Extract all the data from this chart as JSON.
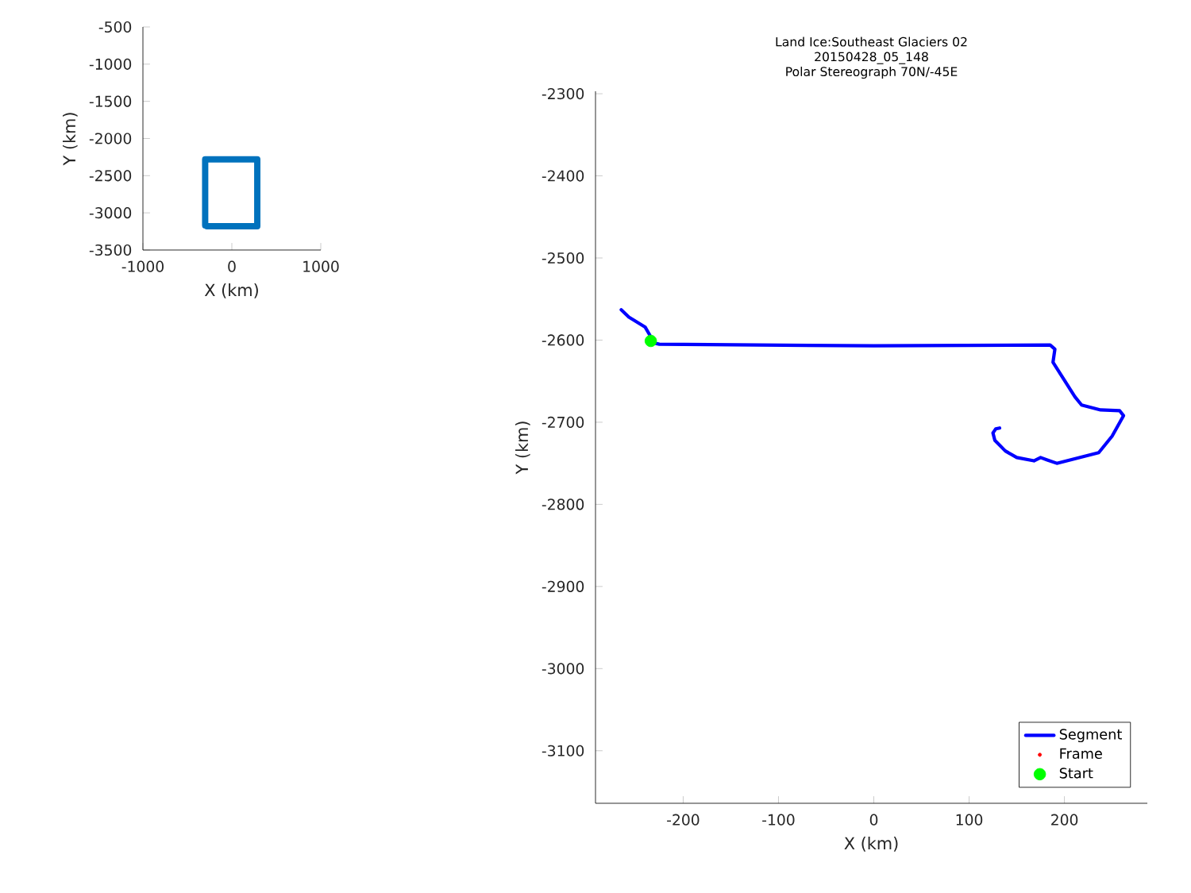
{
  "chart_data": [
    {
      "type": "line",
      "xlabel": "X (km)",
      "ylabel": "Y (km)",
      "xlim": [
        -1000,
        1000
      ],
      "ylim": [
        -3500,
        -500
      ],
      "xticks": [
        -1000,
        0,
        1000
      ],
      "yticks": [
        -3500,
        -3000,
        -2500,
        -2000,
        -1500,
        -1000,
        -500
      ],
      "series": [
        {
          "color": "#0072bd",
          "x": [
            -300,
            -300,
            286,
            286,
            -280
          ],
          "values": [
            -3170,
            -2280,
            -2280,
            -3180,
            -3180
          ]
        }
      ]
    },
    {
      "type": "line",
      "title": "Land Ice:Southeast  Glaciers 02",
      "subtitle": "20150428_05_148",
      "annotations": [
        "Polar Stereograph 70N/-45E"
      ],
      "xlabel": "X (km)",
      "ylabel": "Y (km)",
      "xlim": [
        -292,
        287
      ],
      "ylim": [
        -3164,
        -2297
      ],
      "xticks": [
        -200,
        -100,
        0,
        100,
        200
      ],
      "yticks": [
        -3100,
        -3000,
        -2900,
        -2800,
        -2700,
        -2600,
        -2500,
        -2400,
        -2300
      ],
      "legend": "bottom right",
      "series": [
        {
          "name": "Segment",
          "color": "#0000ff",
          "x": [
            -265,
            -257,
            -240,
            -235,
            -233,
            -225,
            0,
            185,
            190,
            188,
            211,
            218,
            238,
            258,
            262,
            250,
            236,
            192,
            182,
            175,
            168,
            150,
            138,
            127,
            125,
            128,
            132
          ],
          "values": [
            -2563,
            -2572,
            -2584,
            -2594,
            -2603,
            -2605,
            -2607,
            -2606,
            -2611,
            -2627,
            -2669,
            -2679,
            -2685,
            -2686,
            -2692,
            -2717,
            -2737,
            -2750,
            -2746,
            -2743,
            -2747,
            -2743,
            -2735,
            -2722,
            -2713,
            -2708,
            -2707
          ]
        },
        {
          "name": "Frame",
          "type": "scatter",
          "color": "#ff0000"
        },
        {
          "name": "Start",
          "type": "scatter",
          "color": "#00ff00",
          "x": [
            -234
          ],
          "values": [
            -2601
          ]
        }
      ]
    }
  ]
}
